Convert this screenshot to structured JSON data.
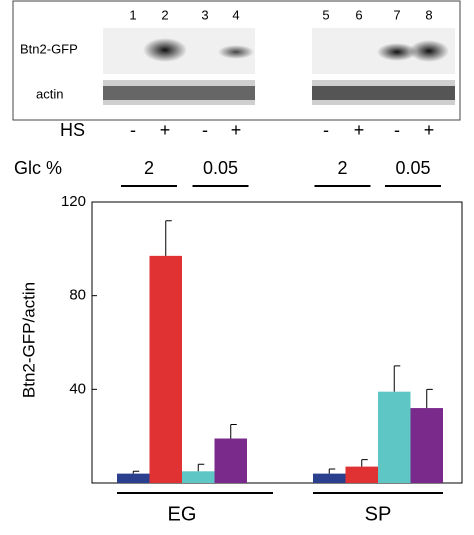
{
  "blot": {
    "lanes": [
      "1",
      "2",
      "3",
      "4",
      "5",
      "6",
      "7",
      "8"
    ],
    "rows": [
      "Btn2-GFP",
      "actin"
    ],
    "hs_label": "HS",
    "hs": [
      "-",
      "+",
      "-",
      "+",
      "-",
      "+",
      "-",
      "+"
    ],
    "glc_label": "Glc %",
    "glc": [
      "2",
      "0.05",
      "2",
      "0.05"
    ]
  },
  "chart_data": {
    "type": "bar",
    "y_label": "Btn2-GFP/actin",
    "categories": [
      "EG",
      "SP"
    ],
    "series": [
      {
        "color": "#2b3f8f",
        "values": [
          4,
          4
        ],
        "errors": [
          1,
          2
        ]
      },
      {
        "color": "#e03232",
        "values": [
          97,
          7
        ],
        "errors": [
          15,
          3
        ]
      },
      {
        "color": "#5fc6c6",
        "values": [
          5,
          39
        ],
        "errors": [
          3,
          11
        ]
      },
      {
        "color": "#7a2a8a",
        "values": [
          19,
          32
        ],
        "errors": [
          6,
          8
        ]
      }
    ],
    "ylim": [
      0,
      120
    ],
    "yticks": [
      40,
      80,
      120
    ]
  }
}
